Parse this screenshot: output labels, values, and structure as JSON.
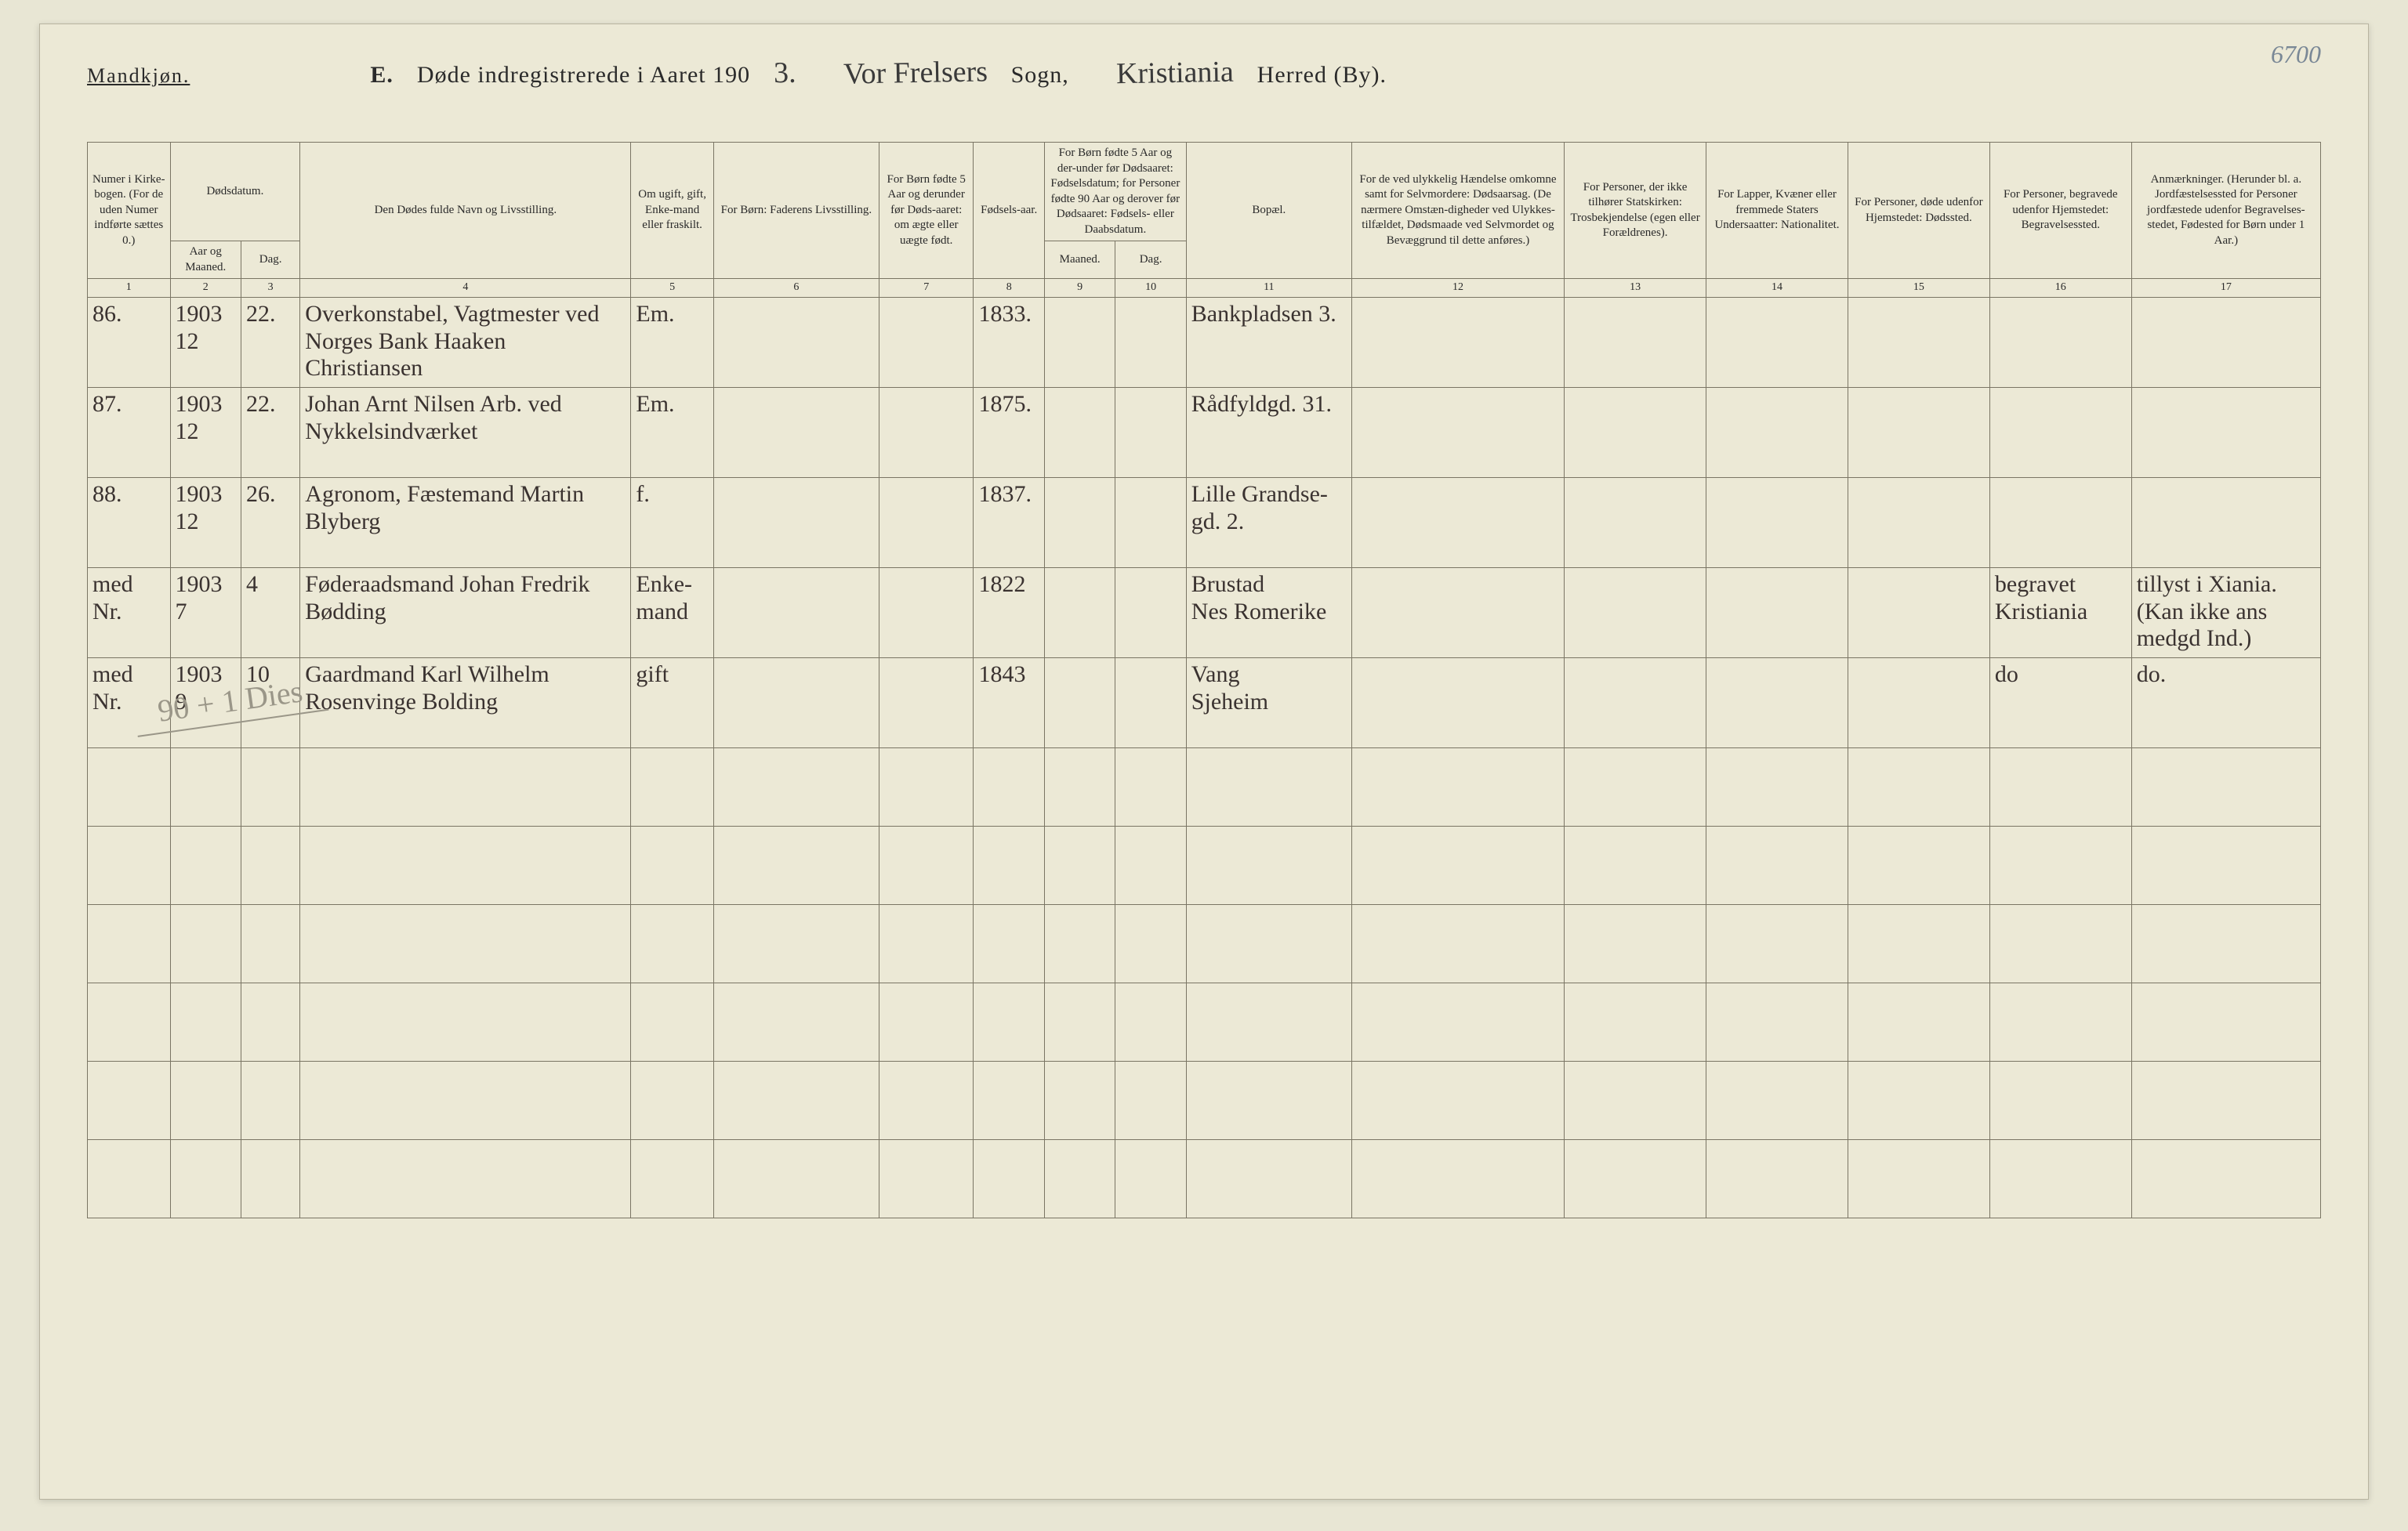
{
  "corner_number": "6700",
  "gender_label": "Mandkjøn.",
  "title_prefix": "E.",
  "title_main": "Døde indregistrerede i Aaret 190",
  "title_year_suffix": "3.",
  "sogn_script": "Vor Frelsers",
  "sogn_label": "Sogn,",
  "herred_script": "Kristiania",
  "herred_label": "Herred (By).",
  "headers": {
    "c1": "Numer i Kirke-bogen. (For de uden Numer indførte sættes 0.)",
    "c2_top": "Dødsdatum.",
    "c2": "Aar og Maaned.",
    "c3": "Dag.",
    "c4": "Den Dødes fulde Navn og Livsstilling.",
    "c5": "Om ugift, gift, Enke-mand eller fraskilt.",
    "c6": "For Børn: Faderens Livsstilling.",
    "c7": "For Børn fødte 5 Aar og derunder før Døds-aaret: om ægte eller uægte født.",
    "c8": "Fødsels-aar.",
    "c9_top": "For Børn fødte 5 Aar og der-under før Dødsaaret: Fødselsdatum; for Personer fødte 90 Aar og derover før Dødsaaret: Fødsels- eller Daabsdatum.",
    "c9": "Maaned.",
    "c10": "Dag.",
    "c11": "Bopæl.",
    "c12": "For de ved ulykkelig Hændelse omkomne samt for Selvmordere: Dødsaarsag. (De nærmere Omstæn-digheder ved Ulykkes-tilfældet, Dødsmaade ved Selvmordet og Bevæggrund til dette anføres.)",
    "c13": "For Personer, der ikke tilhører Statskirken: Trosbekjendelse (egen eller Forældrenes).",
    "c14": "For Lapper, Kvæner eller fremmede Staters Undersaatter: Nationalitet.",
    "c15": "For Personer, døde udenfor Hjemstedet: Dødssted.",
    "c16": "For Personer, begravede udenfor Hjemstedet: Begravelsessted.",
    "c17": "Anmærkninger. (Herunder bl. a. Jordfæstelsessted for Personer jordfæstede udenfor Begravelses-stedet, Fødested for Børn under 1 Aar.)"
  },
  "colnums": [
    "1",
    "2",
    "3",
    "4",
    "5",
    "6",
    "7",
    "8",
    "9",
    "10",
    "11",
    "12",
    "13",
    "14",
    "15",
    "16",
    "17"
  ],
  "rows": [
    {
      "num": "86.",
      "yr": "1903\n12",
      "day": "22.",
      "name": "Overkonstabel, Vagtmester ved Norges Bank Haaken Christiansen",
      "civ": "Em.",
      "far": "",
      "leg": "",
      "faar": "1833.",
      "fm": "",
      "fd": "",
      "bop": "Bankpladsen 3.",
      "c12": "",
      "c13": "",
      "c14": "",
      "c15": "",
      "c16": "",
      "c17": ""
    },
    {
      "num": "87.",
      "yr": "1903\n12",
      "day": "22.",
      "name": "Johan Arnt Nilsen Arb. ved Nykkelsindværket",
      "civ": "Em.",
      "far": "",
      "leg": "",
      "faar": "1875.",
      "fm": "",
      "fd": "",
      "bop": "Rådfyldgd. 31.",
      "c12": "",
      "c13": "",
      "c14": "",
      "c15": "",
      "c16": "",
      "c17": ""
    },
    {
      "num": "88.",
      "yr": "1903\n12",
      "day": "26.",
      "name": "Agronom, Fæstemand Martin Blyberg",
      "civ": "f.",
      "far": "",
      "leg": "",
      "faar": "1837.",
      "fm": "",
      "fd": "",
      "bop": "Lille Grandse-gd. 2.",
      "c12": "",
      "c13": "",
      "c14": "",
      "c15": "",
      "c16": "",
      "c17": ""
    },
    {
      "num": "med\nNr.",
      "yr": "1903\n7",
      "day": "4",
      "name": "Føderaadsmand Johan Fredrik Bødding",
      "civ": "Enke-mand",
      "far": "",
      "leg": "",
      "faar": "1822",
      "fm": "",
      "fd": "",
      "bop": "Brustad\nNes Romerike",
      "c12": "",
      "c13": "",
      "c14": "",
      "c15": "",
      "c16": "begravet Kristiania",
      "c17": "tillyst i Xiania. (Kan ikke ans medgd Ind.)"
    },
    {
      "num": "med\nNr.",
      "yr": "1903\n9",
      "day": "10",
      "name": "Gaardmand Karl Wilhelm Rosenvinge Bolding",
      "civ": "gift",
      "far": "",
      "leg": "",
      "faar": "1843",
      "fm": "",
      "fd": "",
      "bop": "Vang\nSjeheim",
      "c12": "",
      "c13": "",
      "c14": "",
      "c15": "",
      "c16": "do",
      "c17": "do."
    }
  ],
  "pencil_note": "90 + 1 Dies",
  "blank_rows": 6,
  "colors": {
    "page_bg": "#ece9d6",
    "body_bg": "#e8e6d4",
    "rule": "#7a7564",
    "ink": "#3a3230",
    "pencil": "#9a9688",
    "corner": "#7a8896"
  }
}
